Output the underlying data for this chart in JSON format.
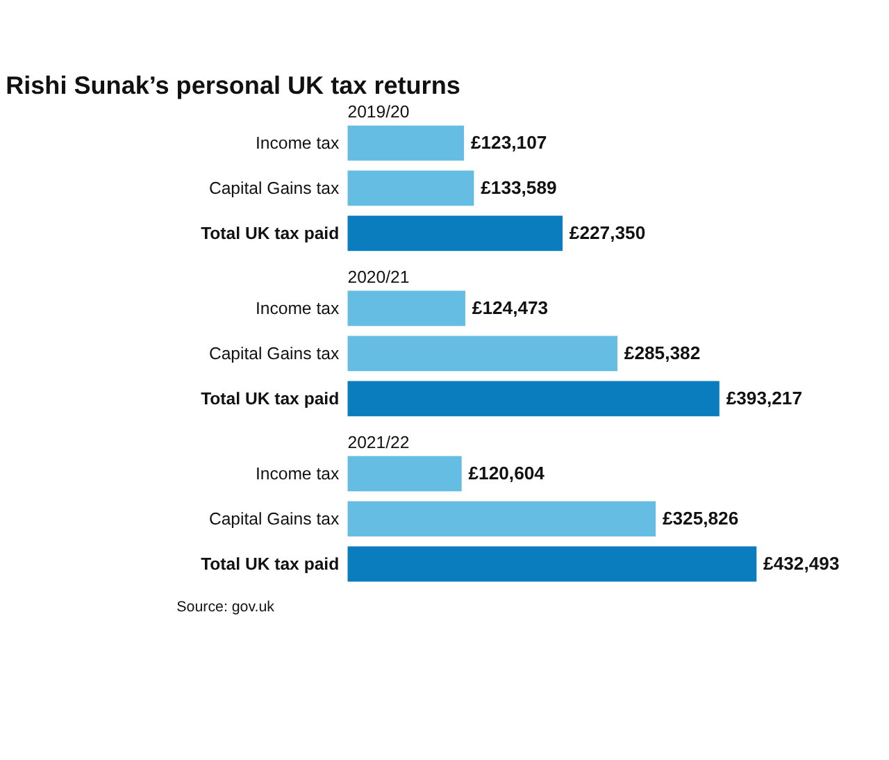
{
  "chart_data": [
    {
      "type": "bar",
      "orientation": "horizontal",
      "title": "Rishi Sunak’s personal UK tax returns",
      "subtitle": "2019/20",
      "categories": [
        "Income tax",
        "Capital Gains tax",
        "Total UK tax paid"
      ],
      "values": [
        123107,
        133589,
        227350
      ],
      "colors": [
        "#66bde3",
        "#66bde3",
        "#0a7dbf"
      ],
      "value_labels": [
        "£123,107",
        "£133,589",
        "£227,350"
      ]
    },
    {
      "type": "bar",
      "orientation": "horizontal",
      "subtitle": "2020/21",
      "categories": [
        "Income tax",
        "Capital Gains tax",
        "Total UK tax paid"
      ],
      "values": [
        124473,
        285382,
        393217
      ],
      "colors": [
        "#66bde3",
        "#66bde3",
        "#0a7dbf"
      ],
      "value_labels": [
        "£124,473",
        "£285,382",
        "£393,217"
      ]
    },
    {
      "type": "bar",
      "orientation": "horizontal",
      "subtitle": "2021/22",
      "categories": [
        "Income tax",
        "Capital Gains tax",
        "Total UK tax paid"
      ],
      "values": [
        120604,
        325826,
        432493
      ],
      "colors": [
        "#66bde3",
        "#66bde3",
        "#0a7dbf"
      ],
      "value_labels": [
        "£120,604",
        "£325,826",
        "£432,493"
      ],
      "annotations": [
        "Source: gov.uk"
      ]
    }
  ]
}
